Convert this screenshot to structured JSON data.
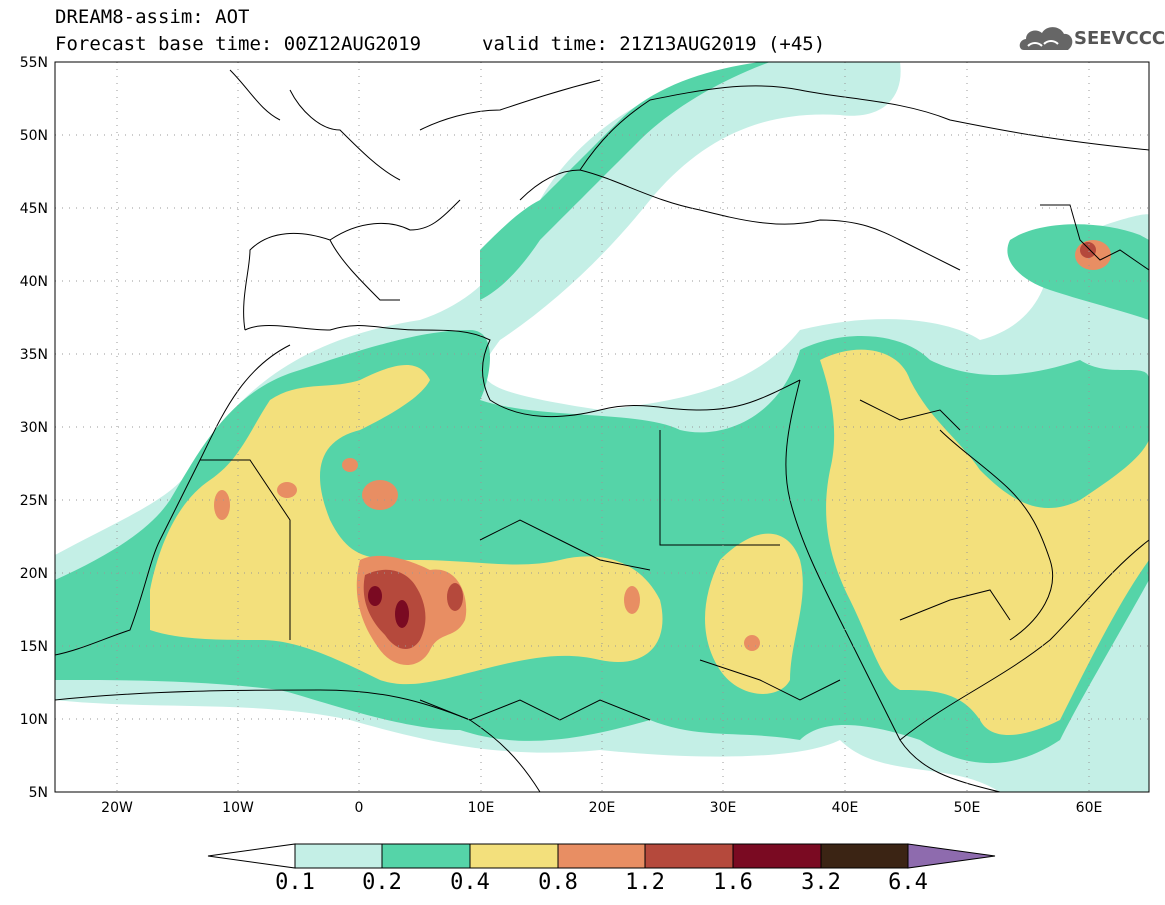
{
  "header": {
    "title": "DREAM8-assim: AOT",
    "base_time": "Forecast base time: 00Z12AUG2019",
    "valid_time": "valid time: 21Z13AUG2019 (+45)"
  },
  "logo": {
    "text": "SEEVCCC",
    "icon": "cloud-logo-icon"
  },
  "map": {
    "lat_labels": [
      "55N",
      "50N",
      "45N",
      "40N",
      "35N",
      "30N",
      "25N",
      "20N",
      "15N",
      "10N",
      "5N"
    ],
    "lon_labels": [
      "20W",
      "10W",
      "0",
      "10E",
      "20E",
      "30E",
      "40E",
      "50E",
      "60E"
    ]
  },
  "colorbar": {
    "labels": [
      "0.1",
      "0.2",
      "0.4",
      "0.8",
      "1.2",
      "1.6",
      "3.2",
      "6.4"
    ],
    "colors": [
      "#ffffff",
      "#c4efe6",
      "#55d4a8",
      "#f3e07c",
      "#e88e63",
      "#b5493c",
      "#7a0a22",
      "#3b2414",
      "#8e6bae"
    ]
  },
  "palette": {
    "c01": "#c4efe6",
    "c02": "#55d4a8",
    "c04": "#f3e07c",
    "c08": "#e88e63",
    "c12": "#b5493c",
    "c16": "#7a0a22"
  }
}
